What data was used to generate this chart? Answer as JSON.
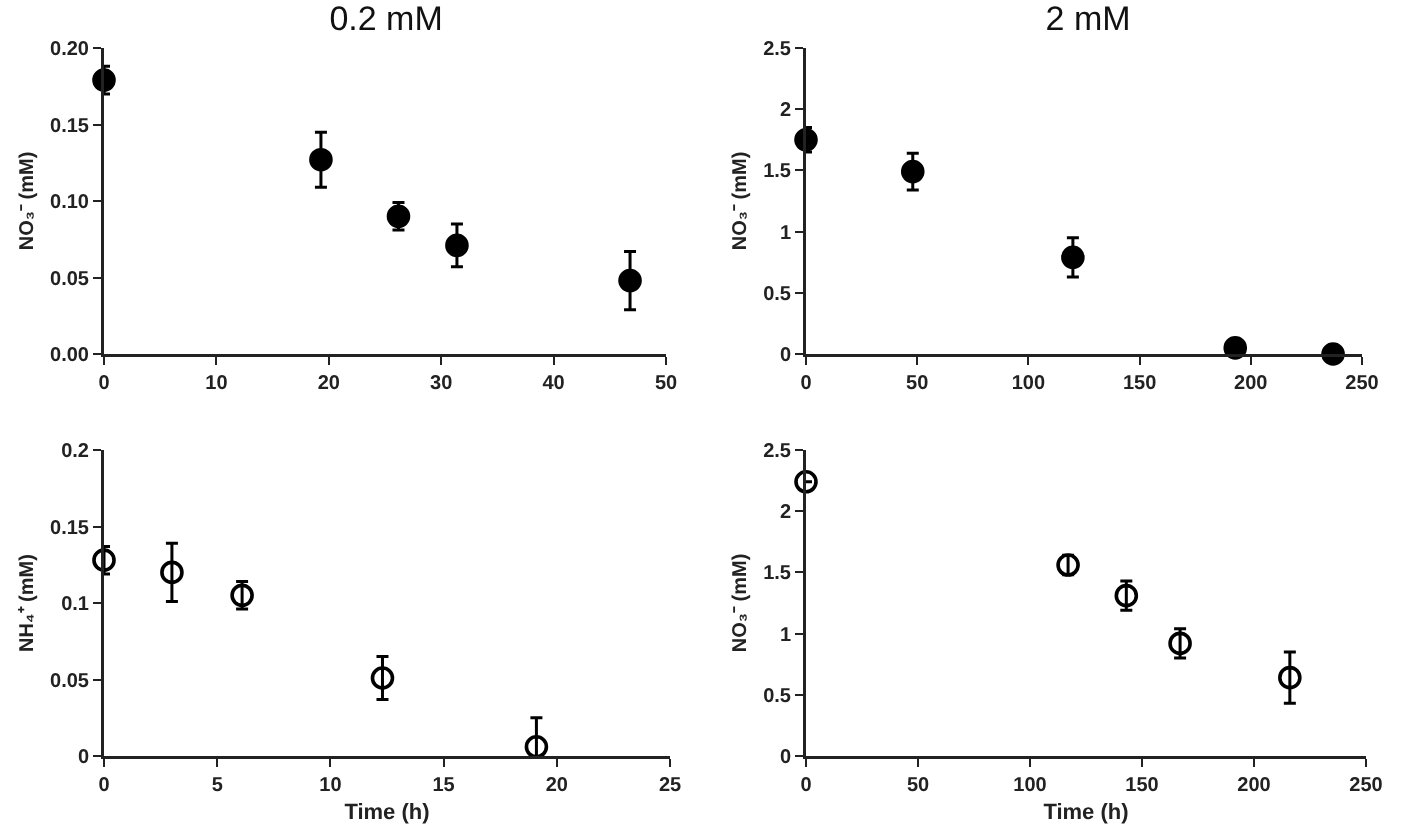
{
  "chart_data": [
    {
      "type": "scatter",
      "title": "0.2 mM",
      "ylabel": "NO₃⁻ (mM)",
      "marker": "circle",
      "xlim": [
        0,
        50
      ],
      "xticks": [
        0,
        10,
        20,
        30,
        40,
        50
      ],
      "ylim": [
        0,
        0.2
      ],
      "yticks": [
        {
          "value": 0,
          "label": "0.00"
        },
        {
          "value": 0.05,
          "label": "0.05"
        },
        {
          "value": 0.1,
          "label": "0.10"
        },
        {
          "value": 0.15,
          "label": "0.15"
        },
        {
          "value": 0.2,
          "label": "0.20"
        }
      ],
      "series": [
        {
          "color": "#000000",
          "x": [
            0,
            19.3,
            26.2,
            31.4,
            46.8
          ],
          "values": [
            0.179,
            0.127,
            0.09,
            0.071,
            0.048
          ],
          "errors": [
            0.009,
            0.018,
            0.009,
            0.014,
            0.019
          ]
        }
      ]
    },
    {
      "type": "scatter",
      "title": "2 mM",
      "ylabel": "NO₃⁻ (mM)",
      "marker": "circle",
      "xlim": [
        0,
        250
      ],
      "xticks": [
        0,
        50,
        100,
        150,
        200,
        250
      ],
      "ylim": [
        0,
        2.5
      ],
      "yticks": [
        0,
        0.5,
        1,
        1.5,
        2,
        2.5
      ],
      "series": [
        {
          "color": "#000000",
          "x": [
            0,
            48,
            120,
            193,
            237
          ],
          "values": [
            1.75,
            1.49,
            0.79,
            0.05,
            0
          ],
          "errors": [
            0.1,
            0.15,
            0.16,
            null,
            null
          ]
        }
      ]
    },
    {
      "type": "scatter",
      "xlabel": "Time (h)",
      "ylabel": "NH₄⁺ (mM)",
      "marker": "circle-open",
      "xlim": [
        0,
        25
      ],
      "xticks": [
        0,
        5,
        10,
        15,
        20,
        25
      ],
      "ylim": [
        0,
        0.2
      ],
      "yticks": [
        0,
        0.05,
        0.1,
        0.15,
        0.2
      ],
      "series": [
        {
          "color": "#000000",
          "x": [
            0,
            3,
            6.1,
            12.3,
            19.1
          ],
          "values": [
            0.128,
            0.12,
            0.105,
            0.051,
            0.006
          ],
          "errors": [
            0.009,
            0.019,
            0.009,
            0.014,
            0.019
          ]
        }
      ]
    },
    {
      "type": "scatter",
      "xlabel": "Time (h)",
      "ylabel": "NO₃⁻ (mM)",
      "marker": "circle-open",
      "xlim": [
        0,
        250
      ],
      "xticks": [
        0,
        50,
        100,
        150,
        200,
        250
      ],
      "ylim": [
        0,
        2.5
      ],
      "yticks": [
        0,
        0.5,
        1,
        1.5,
        2,
        2.5
      ],
      "series": [
        {
          "color": "#000000",
          "x": [
            0,
            117,
            143,
            167,
            216
          ],
          "values": [
            2.24,
            1.56,
            1.31,
            0.92,
            0.64
          ],
          "errors": [
            null,
            0.08,
            0.12,
            0.12,
            0.21
          ]
        }
      ]
    }
  ]
}
